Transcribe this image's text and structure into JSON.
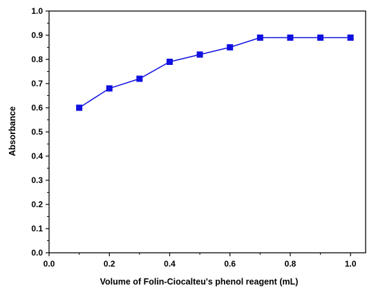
{
  "chart_data": {
    "type": "line",
    "title": "",
    "xlabel": "Volume of Folin-Ciocalteu's phenol reagent (mL)",
    "ylabel": "Absorbance",
    "xlim": [
      0.0,
      1.05
    ],
    "ylim": [
      0.0,
      1.0
    ],
    "x_ticks": [
      "0.0",
      "0.2",
      "0.4",
      "0.6",
      "0.8",
      "1.0"
    ],
    "y_ticks": [
      "0.0",
      "0.1",
      "0.2",
      "0.3",
      "0.4",
      "0.5",
      "0.6",
      "0.7",
      "0.8",
      "0.9",
      "1.0"
    ],
    "grid": false,
    "legend": false,
    "marker": "square",
    "series_color": "#1010e0",
    "series": [
      {
        "x": [
          0.1,
          0.2,
          0.3,
          0.4,
          0.5,
          0.6,
          0.7,
          0.8,
          0.9,
          1.0
        ],
        "values": [
          0.6,
          0.68,
          0.72,
          0.79,
          0.82,
          0.85,
          0.89,
          0.89,
          0.89,
          0.89
        ]
      }
    ]
  }
}
